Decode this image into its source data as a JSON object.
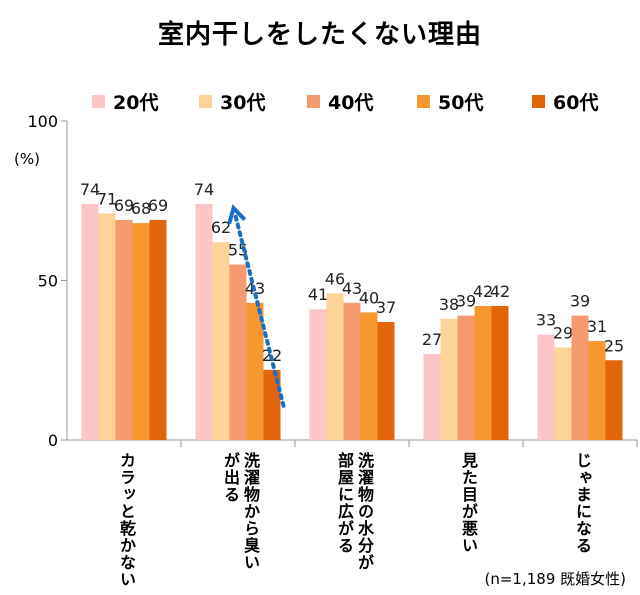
{
  "chart_data": {
    "type": "bar",
    "title": "室内干しをしたくない理由",
    "unit_label": "(%)",
    "note": "(n=1,189  既婚女性)",
    "ylim": [
      0,
      100
    ],
    "yticks": [
      0,
      50,
      100
    ],
    "categories": [
      [
        "カラッと乾かない"
      ],
      [
        "洗濯物から臭い",
        "が出る"
      ],
      [
        "洗濯物の水分が",
        "部屋に広がる"
      ],
      [
        "見た目が悪い"
      ],
      [
        "じゃまになる"
      ]
    ],
    "series": [
      {
        "name": "20代",
        "color": "#fcc6c6",
        "values": [
          74,
          74,
          41,
          27,
          33
        ]
      },
      {
        "name": "30代",
        "color": "#fcd49a",
        "values": [
          71,
          62,
          46,
          38,
          29
        ]
      },
      {
        "name": "40代",
        "color": "#f59a6f",
        "values": [
          69,
          55,
          43,
          39,
          39
        ]
      },
      {
        "name": "50代",
        "color": "#f7972f",
        "values": [
          68,
          43,
          40,
          42,
          31
        ]
      },
      {
        "name": "60代",
        "color": "#e2650c",
        "values": [
          69,
          22,
          37,
          42,
          25
        ]
      }
    ],
    "annotation": {
      "type": "dotted-arrow",
      "color": "#1a6fc4",
      "category": "洗濯物から臭いが出る",
      "from_value": 22,
      "to_value": 74
    }
  }
}
